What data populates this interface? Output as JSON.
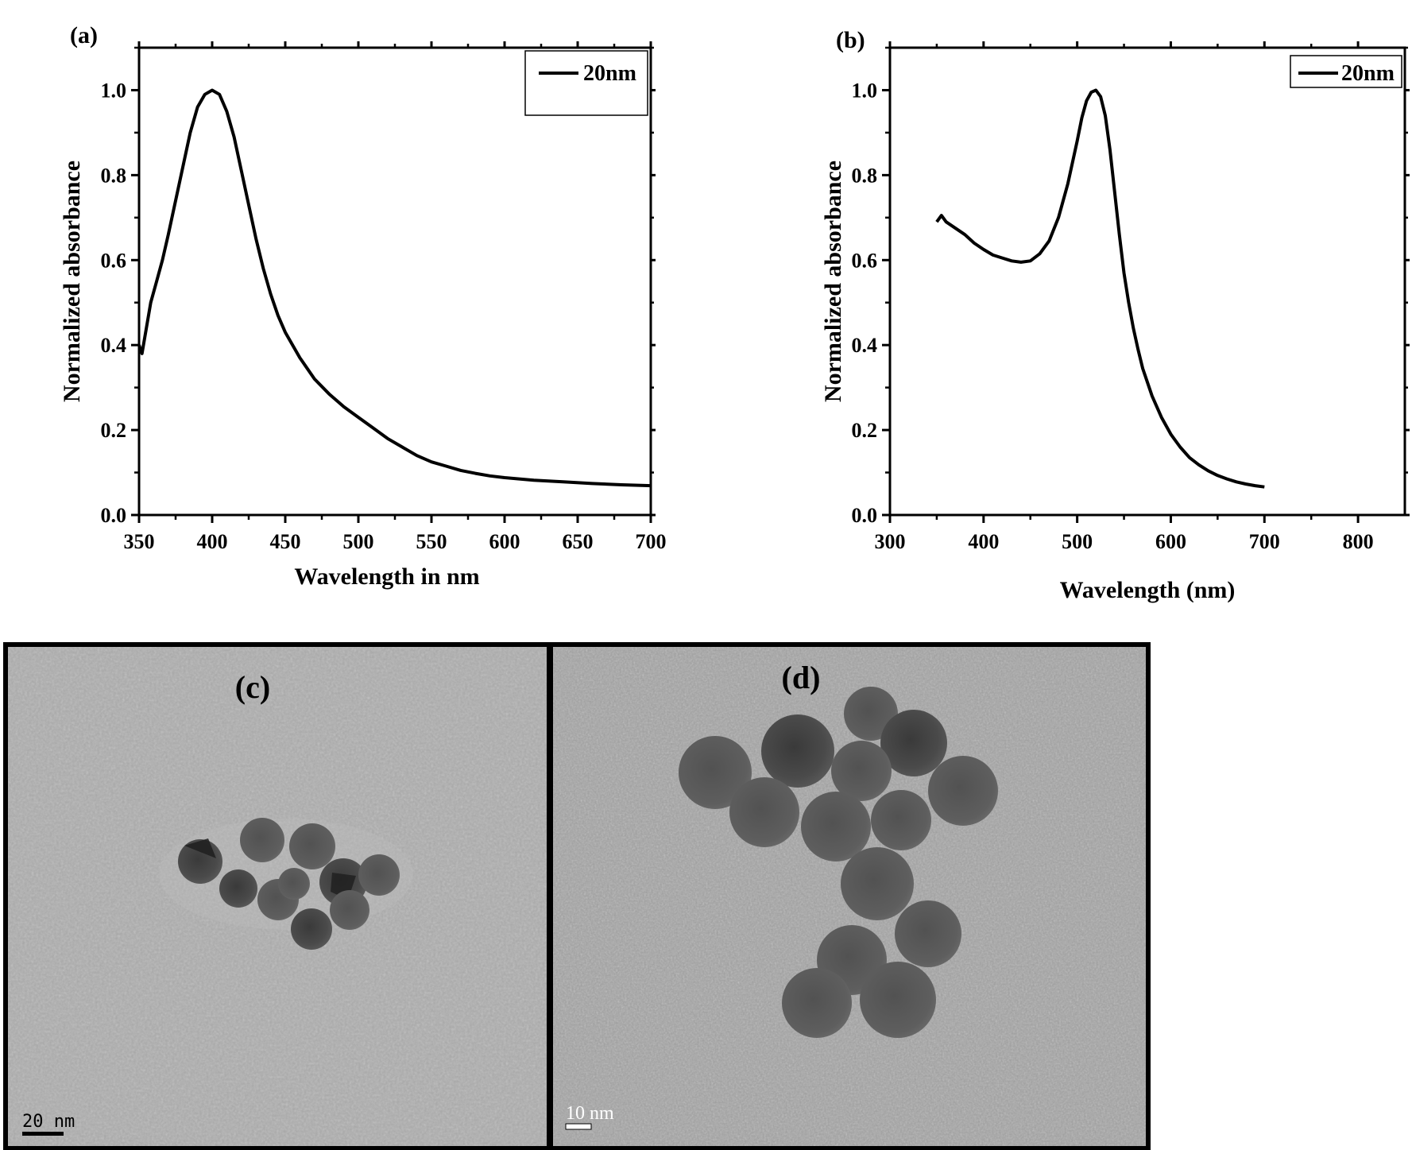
{
  "panels": {
    "a": {
      "label": "(a)"
    },
    "b": {
      "label": "(b)"
    },
    "c": {
      "label": "(c)",
      "scale_bar": "20  nm"
    },
    "d": {
      "label": "(d)",
      "scale_bar": "10 nm"
    }
  },
  "chart_data": [
    {
      "type": "line",
      "panel": "(a)",
      "title": "",
      "xlabel": "Wavelength in nm",
      "ylabel": "Normalized absorbance",
      "xlim": [
        350,
        700
      ],
      "ylim": [
        0.0,
        1.1
      ],
      "xticks": [
        350,
        400,
        450,
        500,
        550,
        600,
        650,
        700
      ],
      "yticks": [
        0.0,
        0.2,
        0.4,
        0.6,
        0.8,
        1.0
      ],
      "xtick_labels": [
        "350",
        "400",
        "450",
        "500",
        "550",
        "600",
        "650",
        "700"
      ],
      "ytick_labels": [
        "0.0",
        "0.2",
        "0.4",
        "0.6",
        "0.8",
        "1.0"
      ],
      "grid": false,
      "legend": {
        "position": "top-right",
        "boxed": true,
        "entries": [
          "20nm"
        ]
      },
      "series": [
        {
          "name": "20nm",
          "color": "#000000",
          "x": [
            350,
            352,
            355,
            358,
            362,
            366,
            370,
            375,
            380,
            385,
            390,
            395,
            400,
            405,
            410,
            415,
            420,
            425,
            430,
            435,
            440,
            445,
            450,
            460,
            470,
            480,
            490,
            500,
            510,
            520,
            530,
            540,
            550,
            560,
            570,
            580,
            590,
            600,
            620,
            640,
            660,
            680,
            700
          ],
          "y": [
            0.4,
            0.38,
            0.44,
            0.5,
            0.55,
            0.6,
            0.66,
            0.74,
            0.82,
            0.9,
            0.96,
            0.99,
            1.0,
            0.99,
            0.95,
            0.89,
            0.81,
            0.73,
            0.65,
            0.58,
            0.52,
            0.47,
            0.43,
            0.37,
            0.32,
            0.285,
            0.255,
            0.23,
            0.205,
            0.18,
            0.16,
            0.14,
            0.125,
            0.115,
            0.105,
            0.098,
            0.092,
            0.088,
            0.082,
            0.078,
            0.074,
            0.071,
            0.069
          ]
        }
      ]
    },
    {
      "type": "line",
      "panel": "(b)",
      "title": "",
      "xlabel": "Wavelength (nm)",
      "ylabel": "Normalized absorbance",
      "xlim": [
        300,
        850
      ],
      "ylim": [
        0.0,
        1.1
      ],
      "xticks": [
        300,
        400,
        500,
        600,
        700,
        800
      ],
      "yticks": [
        0.0,
        0.2,
        0.4,
        0.6,
        0.8,
        1.0
      ],
      "xtick_labels": [
        "300",
        "400",
        "500",
        "600",
        "700",
        "800"
      ],
      "ytick_labels": [
        "0.0",
        "0.2",
        "0.4",
        "0.6",
        "0.8",
        "1.0"
      ],
      "grid": false,
      "legend": {
        "position": "top-right",
        "boxed": true,
        "entries": [
          "20nm"
        ]
      },
      "series": [
        {
          "name": "20nm",
          "color": "#000000",
          "x": [
            350,
            355,
            360,
            370,
            380,
            390,
            400,
            410,
            420,
            430,
            440,
            450,
            460,
            470,
            480,
            490,
            500,
            505,
            510,
            515,
            520,
            525,
            530,
            535,
            540,
            545,
            550,
            555,
            560,
            565,
            570,
            580,
            590,
            600,
            610,
            620,
            630,
            640,
            650,
            660,
            670,
            680,
            690,
            700
          ],
          "y": [
            0.69,
            0.705,
            0.69,
            0.675,
            0.66,
            0.64,
            0.625,
            0.612,
            0.605,
            0.598,
            0.595,
            0.598,
            0.615,
            0.645,
            0.7,
            0.78,
            0.88,
            0.935,
            0.975,
            0.995,
            1.0,
            0.985,
            0.94,
            0.86,
            0.76,
            0.66,
            0.57,
            0.5,
            0.44,
            0.39,
            0.345,
            0.28,
            0.23,
            0.19,
            0.16,
            0.135,
            0.118,
            0.104,
            0.093,
            0.085,
            0.078,
            0.073,
            0.069,
            0.066
          ]
        }
      ]
    }
  ]
}
